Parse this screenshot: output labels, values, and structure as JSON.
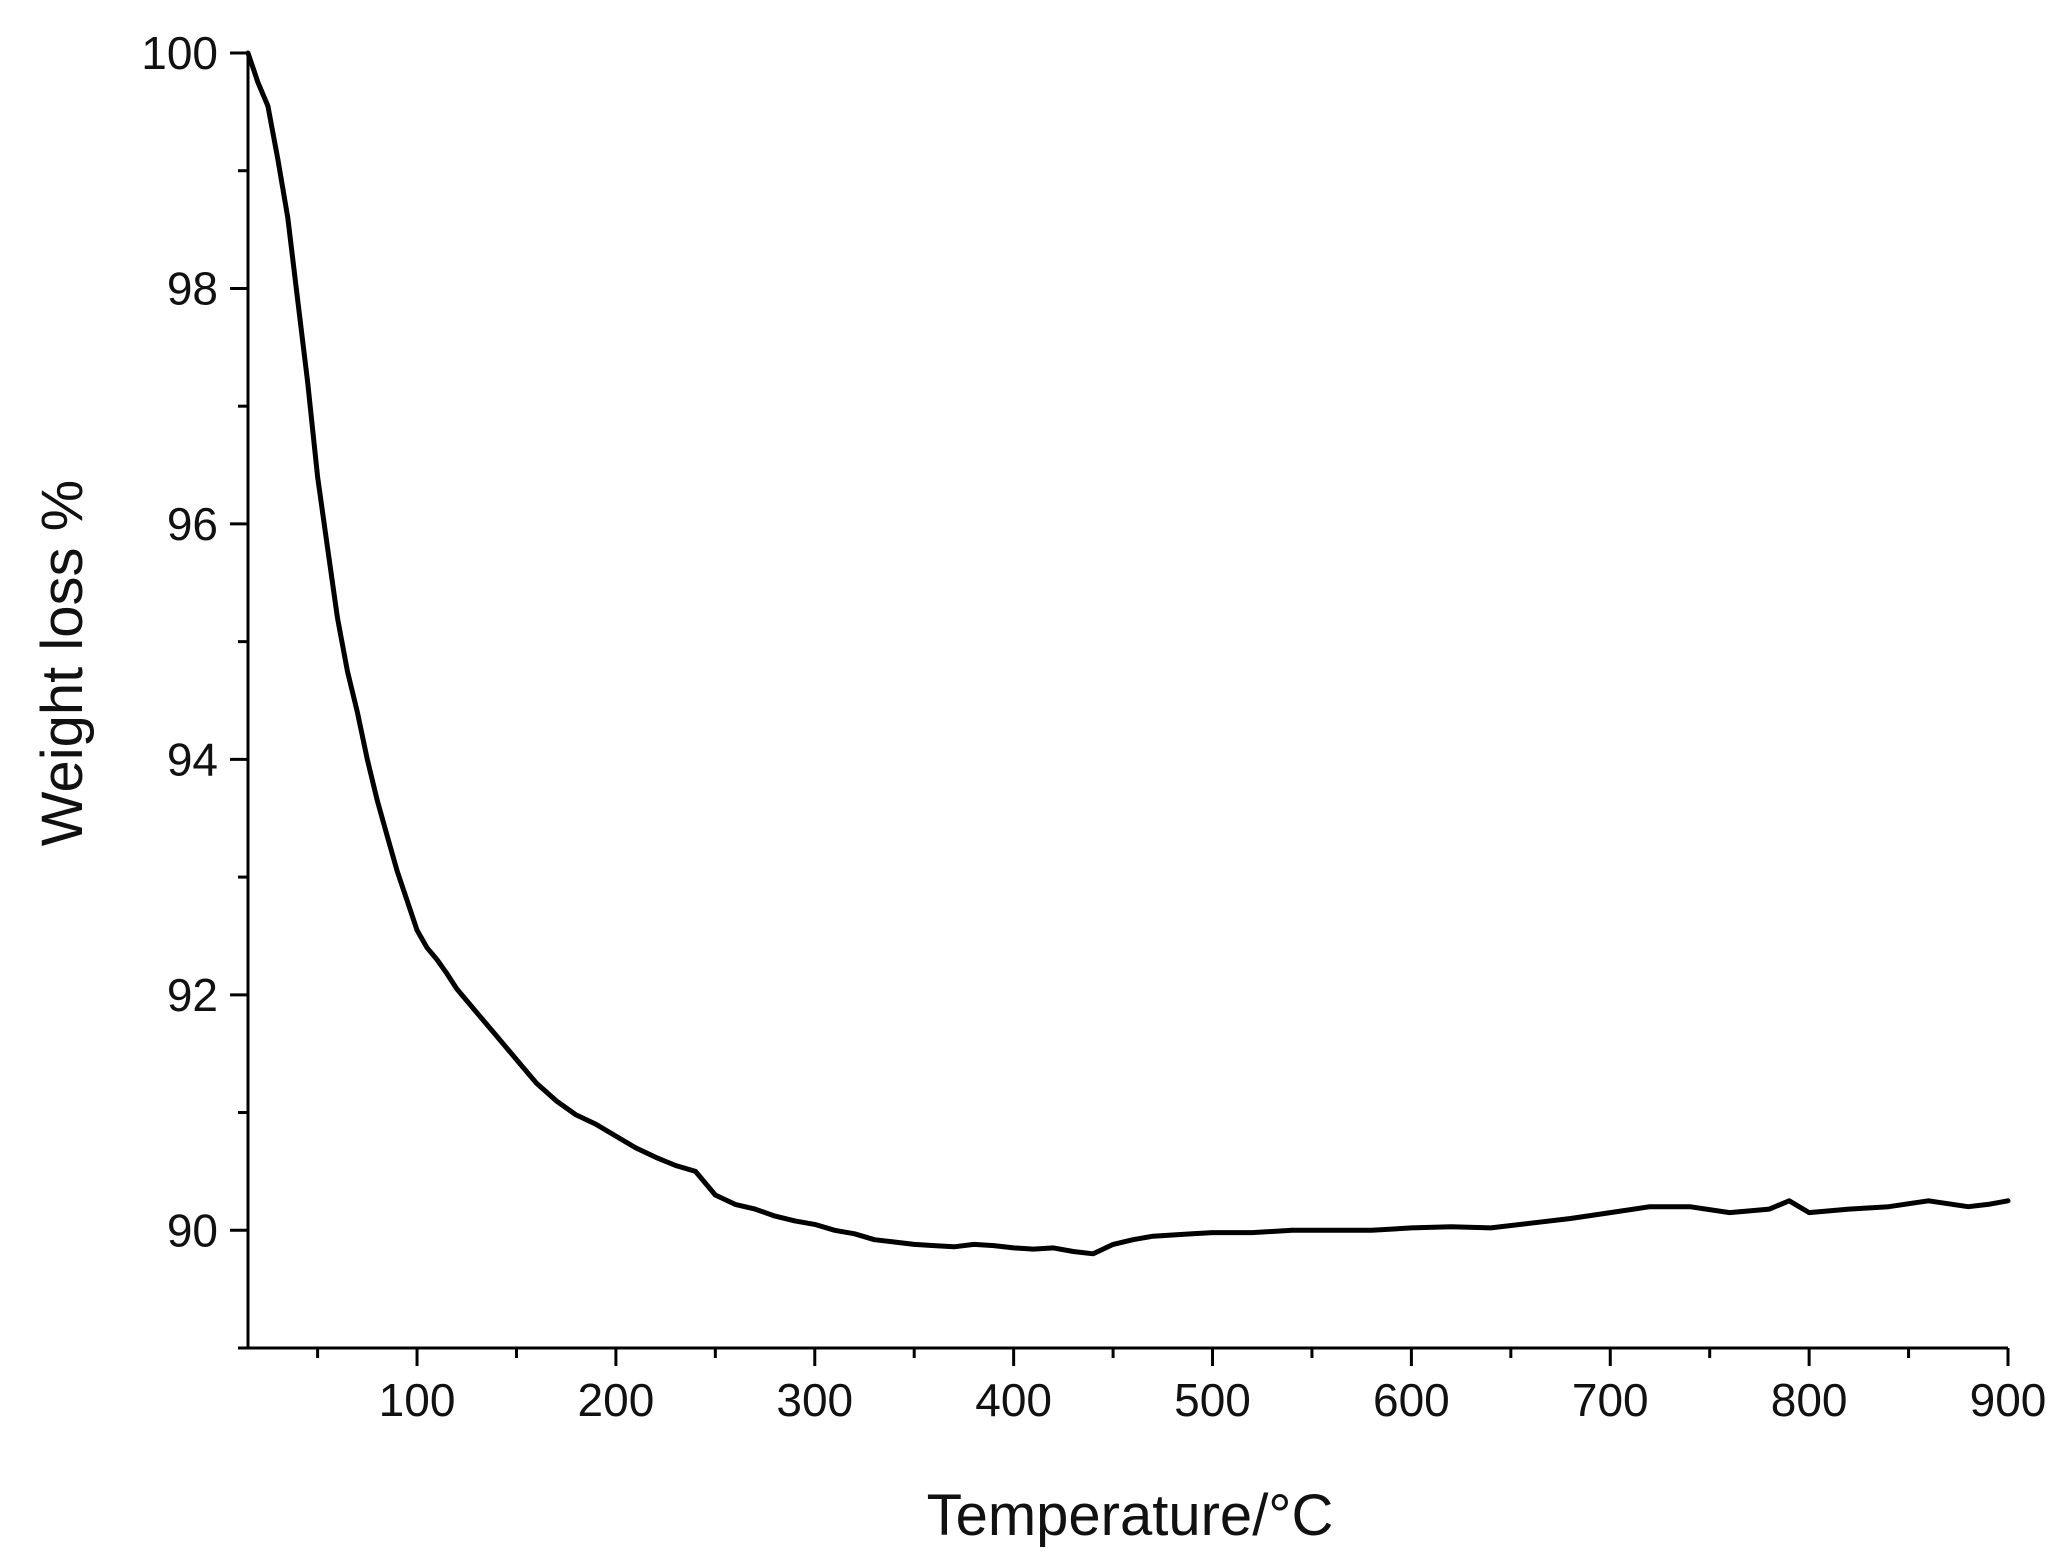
{
  "chart_data": {
    "type": "line",
    "title": "",
    "xlabel": "Temperature/°C",
    "ylabel": "Weight loss %",
    "xlim": [
      15,
      900
    ],
    "ylim": [
      89,
      100
    ],
    "xticks": [
      100,
      200,
      300,
      400,
      500,
      600,
      700,
      800,
      900
    ],
    "yticks": [
      90,
      92,
      94,
      96,
      98,
      100
    ],
    "grid": false,
    "legend": "none",
    "line_color": "#000000",
    "series": [
      {
        "x": [
          15,
          18,
          20,
          25,
          30,
          35,
          40,
          45,
          50,
          55,
          60,
          65,
          70,
          75,
          80,
          85,
          90,
          95,
          100,
          105,
          110,
          115,
          120,
          130,
          140,
          150,
          160,
          170,
          180,
          190,
          200,
          210,
          220,
          230,
          240,
          250,
          260,
          270,
          280,
          290,
          300,
          310,
          320,
          330,
          340,
          350,
          360,
          370,
          380,
          390,
          400,
          410,
          420,
          430,
          440,
          450,
          460,
          470,
          480,
          490,
          500,
          520,
          540,
          560,
          580,
          600,
          620,
          640,
          660,
          680,
          700,
          720,
          740,
          760,
          780,
          790,
          800,
          820,
          840,
          860,
          880,
          890,
          900
        ],
        "y": [
          100.0,
          99.85,
          99.75,
          99.55,
          99.1,
          98.6,
          97.9,
          97.2,
          96.4,
          95.8,
          95.2,
          94.75,
          94.4,
          94.0,
          93.65,
          93.35,
          93.05,
          92.8,
          92.55,
          92.4,
          92.3,
          92.18,
          92.05,
          91.85,
          91.65,
          91.45,
          91.25,
          91.1,
          90.98,
          90.9,
          90.8,
          90.7,
          90.62,
          90.55,
          90.5,
          90.3,
          90.22,
          90.18,
          90.12,
          90.08,
          90.05,
          90.0,
          89.97,
          89.92,
          89.9,
          89.88,
          89.87,
          89.86,
          89.88,
          89.87,
          89.85,
          89.84,
          89.85,
          89.82,
          89.8,
          89.88,
          89.92,
          89.95,
          89.96,
          89.97,
          89.98,
          89.98,
          90.0,
          90.0,
          90.0,
          90.02,
          90.03,
          90.02,
          90.06,
          90.1,
          90.15,
          90.2,
          90.2,
          90.15,
          90.18,
          90.25,
          90.15,
          90.18,
          90.2,
          90.25,
          90.2,
          90.22,
          90.25
        ]
      }
    ]
  }
}
